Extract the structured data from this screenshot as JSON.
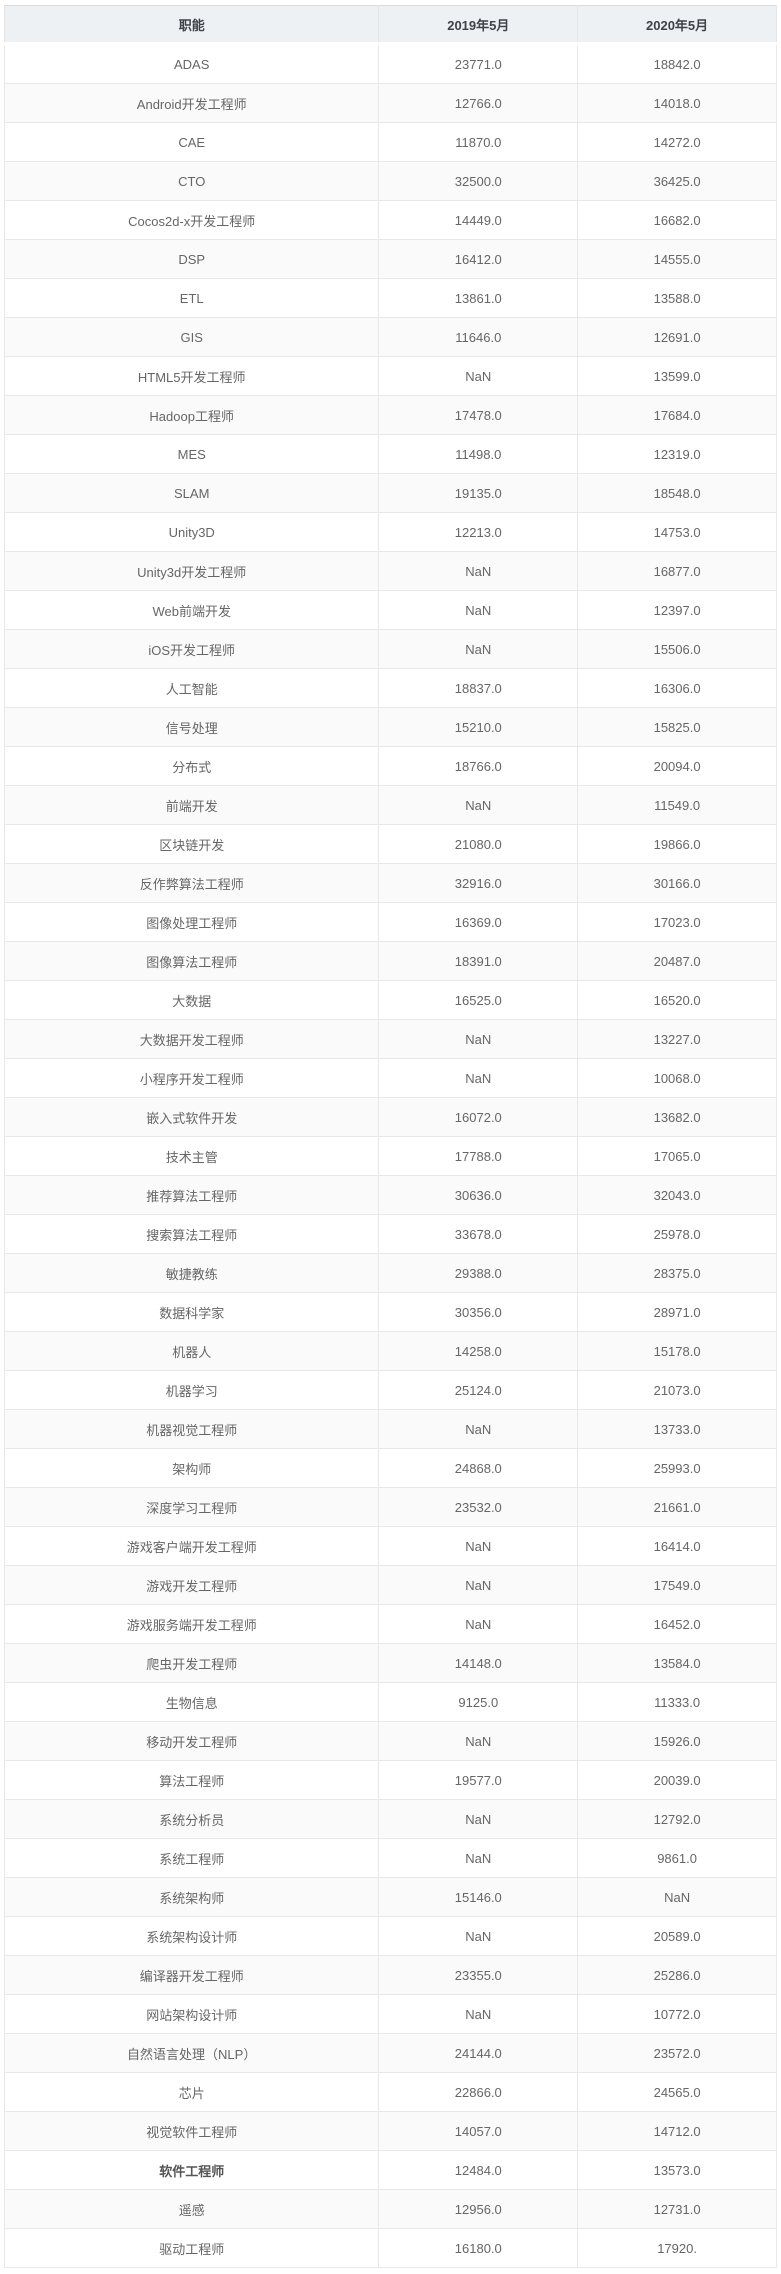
{
  "chart_data": {
    "type": "table",
    "columns": [
      "职能",
      "2019年5月",
      "2020年5月"
    ],
    "rows": [
      [
        "ADAS",
        "23771.0",
        "18842.0"
      ],
      [
        "Android开发工程师",
        "12766.0",
        "14018.0"
      ],
      [
        "CAE",
        "11870.0",
        "14272.0"
      ],
      [
        "CTO",
        "32500.0",
        "36425.0"
      ],
      [
        "Cocos2d-x开发工程师",
        "14449.0",
        "16682.0"
      ],
      [
        "DSP",
        "16412.0",
        "14555.0"
      ],
      [
        "ETL",
        "13861.0",
        "13588.0"
      ],
      [
        "GIS",
        "11646.0",
        "12691.0"
      ],
      [
        "HTML5开发工程师",
        "NaN",
        "13599.0"
      ],
      [
        "Hadoop工程师",
        "17478.0",
        "17684.0"
      ],
      [
        "MES",
        "11498.0",
        "12319.0"
      ],
      [
        "SLAM",
        "19135.0",
        "18548.0"
      ],
      [
        "Unity3D",
        "12213.0",
        "14753.0"
      ],
      [
        "Unity3d开发工程师",
        "NaN",
        "16877.0"
      ],
      [
        "Web前端开发",
        "NaN",
        "12397.0"
      ],
      [
        "iOS开发工程师",
        "NaN",
        "15506.0"
      ],
      [
        "人工智能",
        "18837.0",
        "16306.0"
      ],
      [
        "信号处理",
        "15210.0",
        "15825.0"
      ],
      [
        "分布式",
        "18766.0",
        "20094.0"
      ],
      [
        "前端开发",
        "NaN",
        "11549.0"
      ],
      [
        "区块链开发",
        "21080.0",
        "19866.0"
      ],
      [
        "反作弊算法工程师",
        "32916.0",
        "30166.0"
      ],
      [
        "图像处理工程师",
        "16369.0",
        "17023.0"
      ],
      [
        "图像算法工程师",
        "18391.0",
        "20487.0"
      ],
      [
        "大数据",
        "16525.0",
        "16520.0"
      ],
      [
        "大数据开发工程师",
        "NaN",
        "13227.0"
      ],
      [
        "小程序开发工程师",
        "NaN",
        "10068.0"
      ],
      [
        "嵌入式软件开发",
        "16072.0",
        "13682.0"
      ],
      [
        "技术主管",
        "17788.0",
        "17065.0"
      ],
      [
        "推荐算法工程师",
        "30636.0",
        "32043.0"
      ],
      [
        "搜索算法工程师",
        "33678.0",
        "25978.0"
      ],
      [
        "敏捷教练",
        "29388.0",
        "28375.0"
      ],
      [
        "数据科学家",
        "30356.0",
        "28971.0"
      ],
      [
        "机器人",
        "14258.0",
        "15178.0"
      ],
      [
        "机器学习",
        "25124.0",
        "21073.0"
      ],
      [
        "机器视觉工程师",
        "NaN",
        "13733.0"
      ],
      [
        "架构师",
        "24868.0",
        "25993.0"
      ],
      [
        "深度学习工程师",
        "23532.0",
        "21661.0"
      ],
      [
        "游戏客户端开发工程师",
        "NaN",
        "16414.0"
      ],
      [
        "游戏开发工程师",
        "NaN",
        "17549.0"
      ],
      [
        "游戏服务端开发工程师",
        "NaN",
        "16452.0"
      ],
      [
        "爬虫开发工程师",
        "14148.0",
        "13584.0"
      ],
      [
        "生物信息",
        "9125.0",
        "11333.0"
      ],
      [
        "移动开发工程师",
        "NaN",
        "15926.0"
      ],
      [
        "算法工程师",
        "19577.0",
        "20039.0"
      ],
      [
        "系统分析员",
        "NaN",
        "12792.0"
      ],
      [
        "系统工程师",
        "NaN",
        "9861.0"
      ],
      [
        "系统架构师",
        "15146.0",
        "NaN"
      ],
      [
        "系统架构设计师",
        "NaN",
        "20589.0"
      ],
      [
        "编译器开发工程师",
        "23355.0",
        "25286.0"
      ],
      [
        "网站架构设计师",
        "NaN",
        "10772.0"
      ],
      [
        "自然语言处理（NLP）",
        "24144.0",
        "23572.0"
      ],
      [
        "芯片",
        "22866.0",
        "24565.0"
      ],
      [
        "视觉软件工程师",
        "14057.0",
        "14712.0"
      ],
      [
        "软件工程师",
        "12484.0",
        "13573.0"
      ],
      [
        "遥感",
        "12956.0",
        "12731.0"
      ],
      [
        "驱动工程师",
        "16180.0",
        "17920."
      ]
    ],
    "bold_row_labels": [
      "软件工程师"
    ],
    "layout_hints": {
      "striped": "even data rows shaded",
      "alignment": "all cells centered",
      "grid": true
    }
  },
  "colors": {
    "header_bg": "#eef1f4",
    "header_text": "#3d4349",
    "row_bg": "#ffffff",
    "row_alt_bg": "#fafafa",
    "cell_text": "#666666",
    "border": "#e8e8e8",
    "outer_top_border": "#d8dadc"
  }
}
